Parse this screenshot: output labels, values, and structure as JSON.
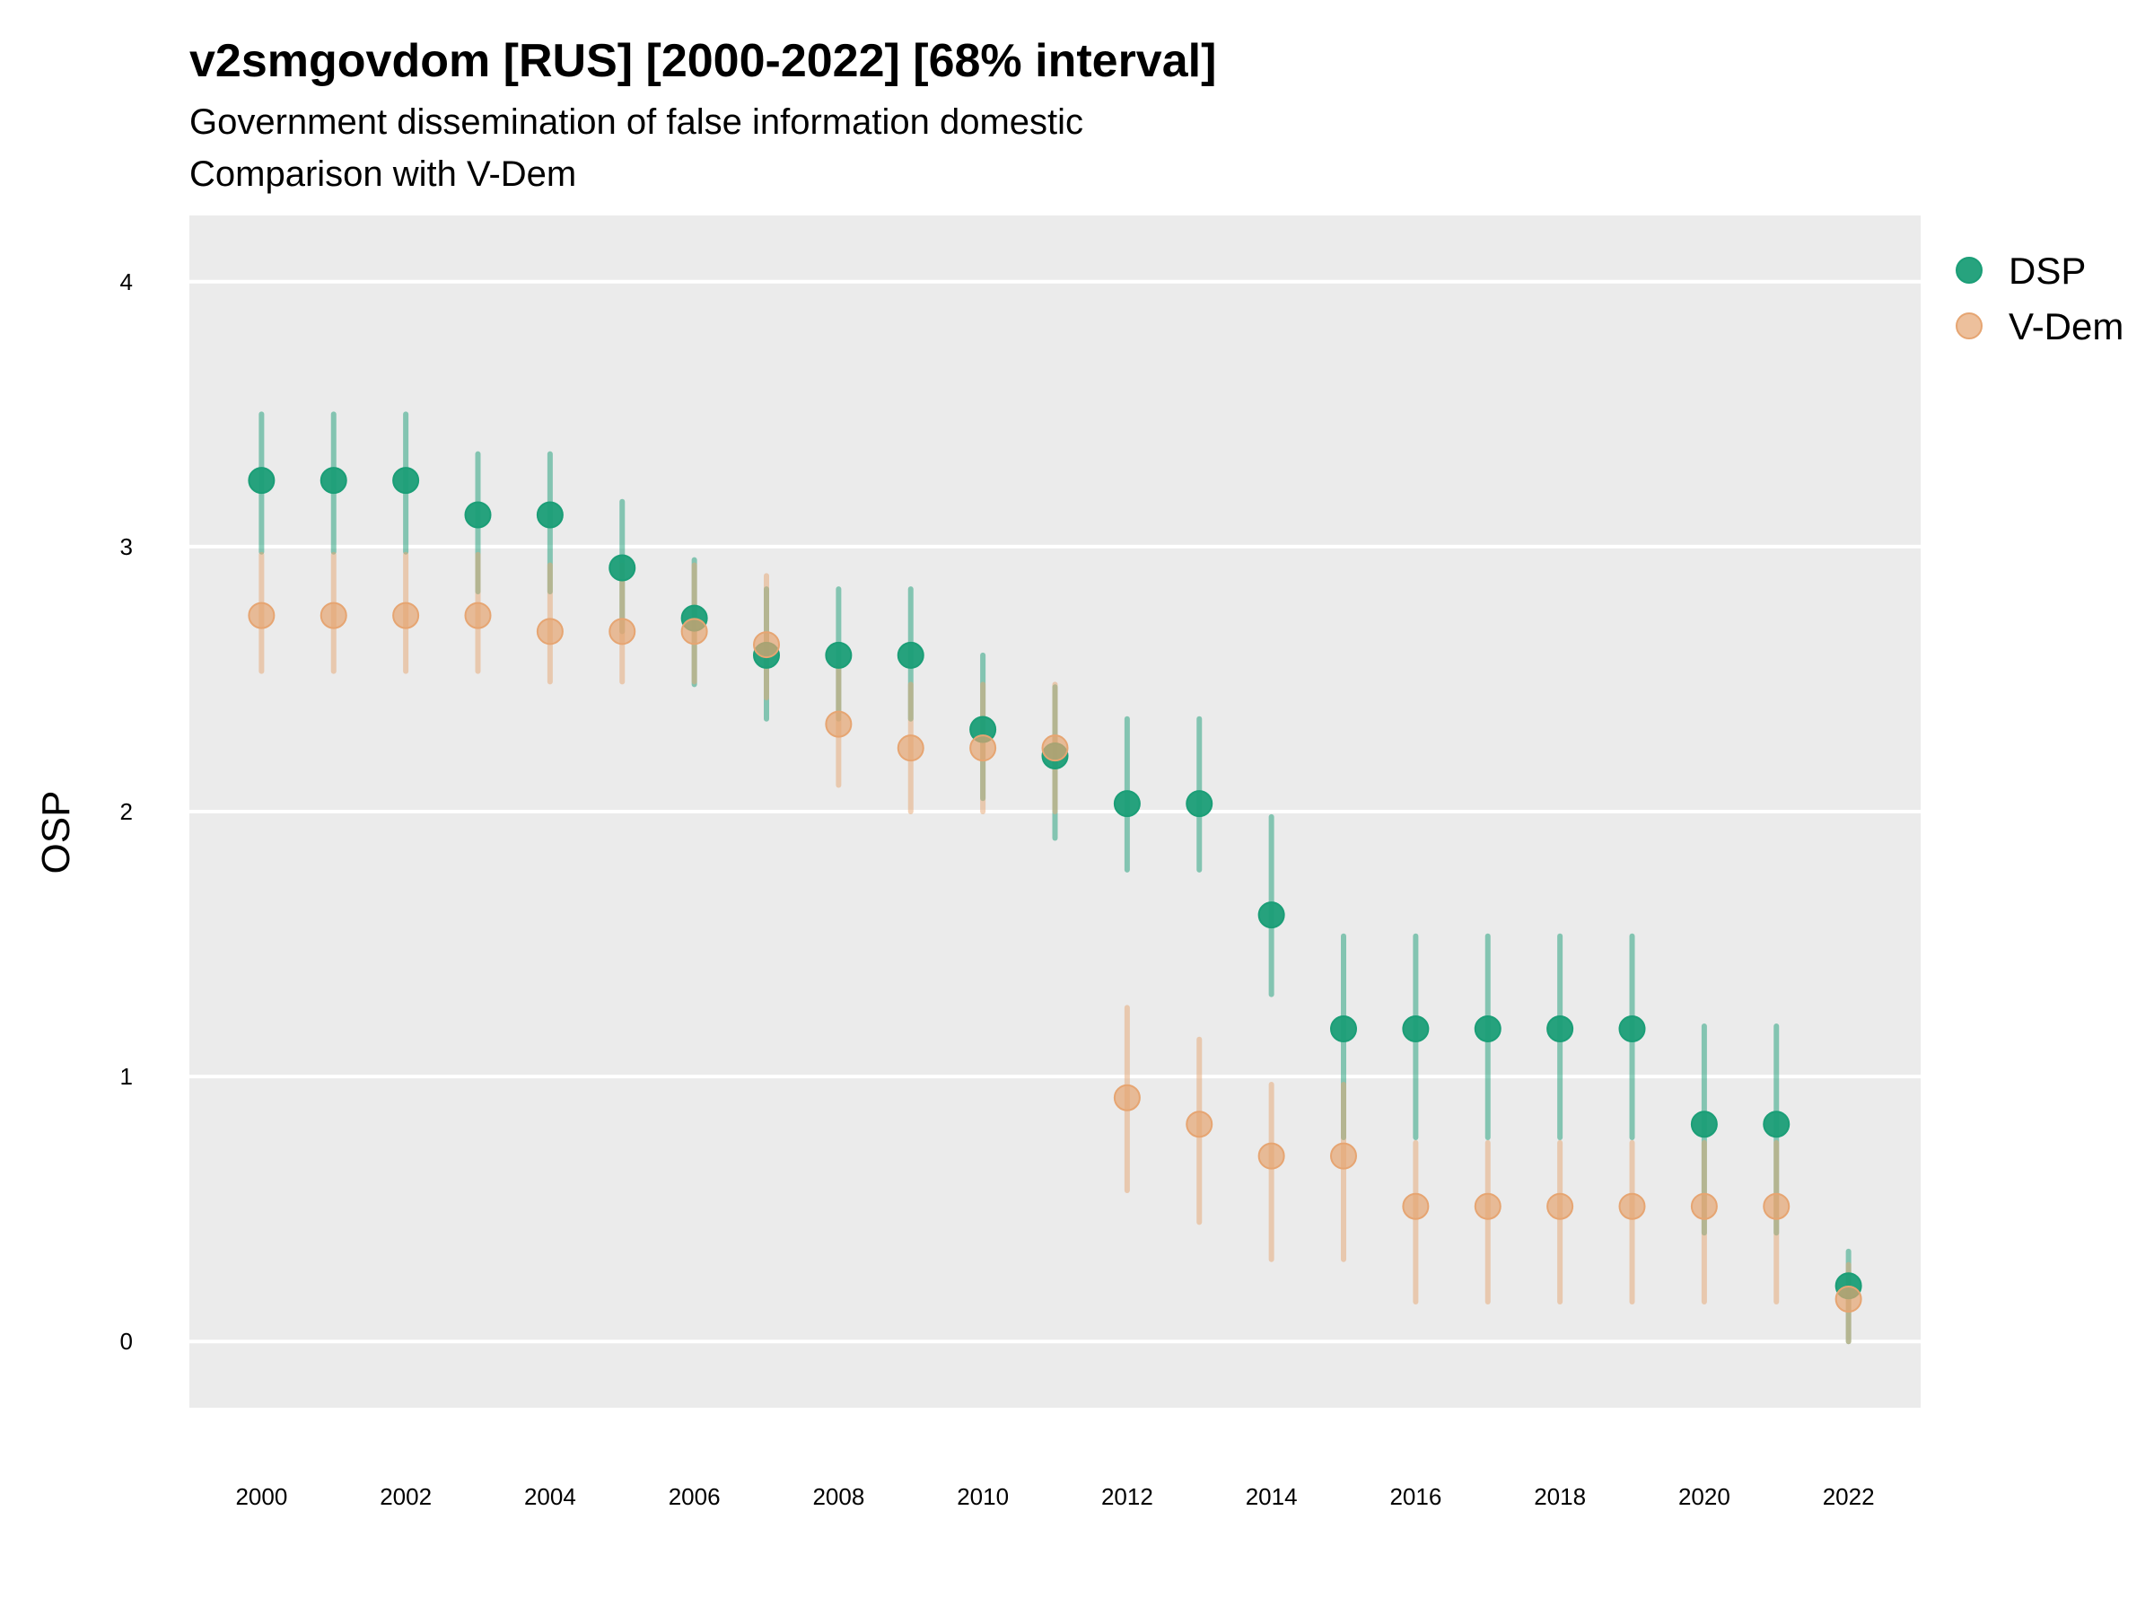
{
  "chart_data": {
    "type": "scatter",
    "title": "v2smgovdom [RUS] [2000-2022] [68% interval]",
    "subtitle": "Government dissemination of false information domestic",
    "subtitle2": "Comparison with V-Dem",
    "ylabel": "OSP",
    "xlabel": "",
    "ylim": [
      -0.25,
      4.25
    ],
    "xlim": [
      1999,
      2023
    ],
    "yticks": [
      "0",
      "1",
      "2",
      "3",
      "4"
    ],
    "xticks": [
      "2000",
      "2002",
      "2004",
      "2006",
      "2008",
      "2010",
      "2012",
      "2014",
      "2016",
      "2018",
      "2020",
      "2022"
    ],
    "legend_position": "right",
    "series": [
      {
        "name": "DSP",
        "color": "#1B9E77",
        "x": [
          2000,
          2001,
          2002,
          2003,
          2004,
          2005,
          2006,
          2007,
          2008,
          2009,
          2010,
          2011,
          2012,
          2013,
          2014,
          2015,
          2016,
          2017,
          2018,
          2019,
          2020,
          2021,
          2022
        ],
        "values": [
          3.25,
          3.25,
          3.25,
          3.12,
          3.12,
          2.92,
          2.73,
          2.59,
          2.59,
          2.59,
          2.31,
          2.21,
          2.03,
          2.03,
          1.61,
          1.18,
          1.18,
          1.18,
          1.18,
          1.18,
          0.82,
          0.82,
          0.21
        ],
        "lower": [
          2.98,
          2.98,
          2.98,
          2.83,
          2.83,
          2.68,
          2.48,
          2.35,
          2.35,
          2.35,
          2.05,
          1.9,
          1.78,
          1.78,
          1.31,
          0.77,
          0.77,
          0.77,
          0.77,
          0.77,
          0.41,
          0.41,
          0.0
        ],
        "upper": [
          3.5,
          3.5,
          3.5,
          3.35,
          3.35,
          3.17,
          2.95,
          2.84,
          2.84,
          2.84,
          2.59,
          2.47,
          2.35,
          2.35,
          1.98,
          1.53,
          1.53,
          1.53,
          1.53,
          1.53,
          1.19,
          1.19,
          0.34
        ]
      },
      {
        "name": "V-Dem",
        "color": "#E6A572",
        "x": [
          2000,
          2001,
          2002,
          2003,
          2004,
          2005,
          2006,
          2007,
          2008,
          2009,
          2010,
          2011,
          2012,
          2013,
          2014,
          2015,
          2016,
          2017,
          2018,
          2019,
          2020,
          2021,
          2022
        ],
        "values": [
          2.74,
          2.74,
          2.74,
          2.74,
          2.68,
          2.68,
          2.68,
          2.63,
          2.33,
          2.24,
          2.24,
          2.24,
          0.92,
          0.82,
          0.7,
          0.7,
          0.51,
          0.51,
          0.51,
          0.51,
          0.51,
          0.51,
          0.16
        ],
        "lower": [
          2.53,
          2.53,
          2.53,
          2.53,
          2.49,
          2.49,
          2.49,
          2.43,
          2.1,
          2.0,
          2.0,
          2.0,
          0.57,
          0.45,
          0.31,
          0.31,
          0.15,
          0.15,
          0.15,
          0.15,
          0.15,
          0.15,
          0.0
        ],
        "upper": [
          2.97,
          2.97,
          2.97,
          2.97,
          2.93,
          2.93,
          2.93,
          2.89,
          2.55,
          2.48,
          2.48,
          2.48,
          1.26,
          1.14,
          0.97,
          0.97,
          0.75,
          0.75,
          0.75,
          0.75,
          0.75,
          0.75,
          0.29
        ]
      }
    ]
  }
}
